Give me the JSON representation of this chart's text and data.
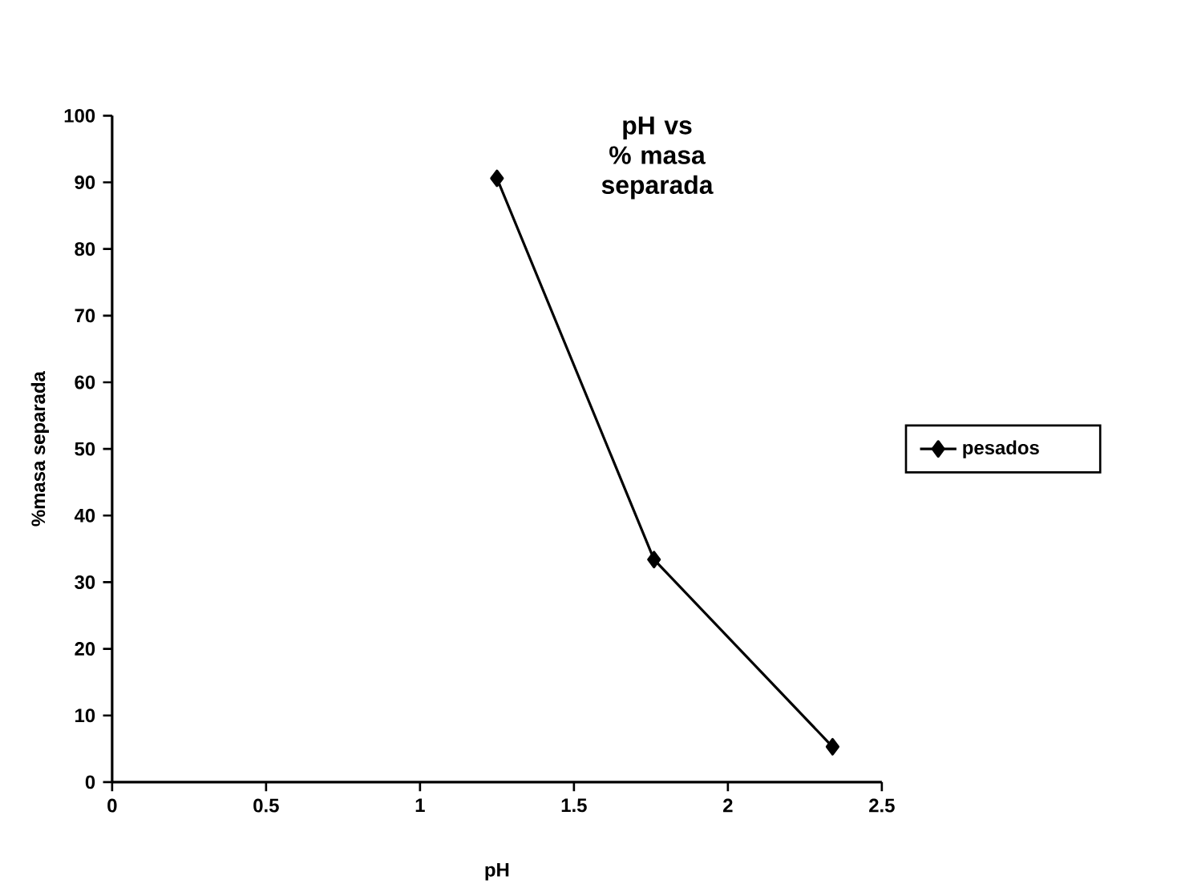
{
  "chart_data": {
    "type": "line",
    "title": "pH vs % masa separada",
    "xlabel": "pH",
    "ylabel": "%masa separada",
    "series": [
      {
        "name": "pesados",
        "color": "#000000",
        "x": [
          1.25,
          1.76,
          2.34
        ],
        "values": [
          90.6,
          33.4,
          5.3
        ]
      }
    ],
    "xlim": [
      0,
      2.5
    ],
    "xticks": [
      0,
      0.5,
      1,
      1.5,
      2,
      2.5
    ],
    "ylim": [
      0,
      100
    ],
    "yticks": [
      0,
      10,
      20,
      30,
      40,
      50,
      60,
      70,
      80,
      90,
      100
    ],
    "grid": false,
    "legend": "right",
    "marker": "diamond",
    "line_style": "solid"
  }
}
